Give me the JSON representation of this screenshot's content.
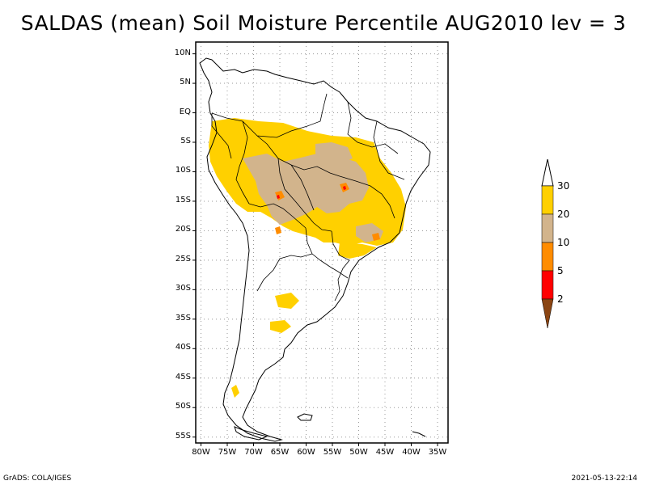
{
  "title": "SALDAS (mean) Soil Moisture Percentile AUG2010 lev = 3",
  "map": {
    "lat_labels": [
      "10N",
      "5N",
      "EQ",
      "5S",
      "10S",
      "15S",
      "20S",
      "25S",
      "30S",
      "35S",
      "40S",
      "45S",
      "50S",
      "55S"
    ],
    "lat_values": [
      10,
      5,
      0,
      -5,
      -10,
      -15,
      -20,
      -25,
      -30,
      -35,
      -40,
      -45,
      -50,
      -55
    ],
    "lon_labels": [
      "80W",
      "75W",
      "70W",
      "65W",
      "60W",
      "55W",
      "50W",
      "45W",
      "40W",
      "35W"
    ],
    "lon_values": [
      -80,
      -75,
      -70,
      -65,
      -60,
      -55,
      -50,
      -45,
      -40,
      -35
    ],
    "lat_range": [
      -56,
      12
    ],
    "lon_range": [
      -81,
      -33
    ]
  },
  "colorbar": {
    "levels": [
      "30",
      "20",
      "10",
      "5",
      "2"
    ],
    "colors": {
      "c_above30": "#ffffff",
      "c_20_30": "#ffd000",
      "c_10_20": "#d2b48c",
      "c_5_10": "#ff8c00",
      "c_2_5": "#ff0000",
      "c_below2": "#8b4513"
    }
  },
  "footer": {
    "left": "GrADS: COLA/IGES",
    "right": "2021-05-13-22:14"
  }
}
